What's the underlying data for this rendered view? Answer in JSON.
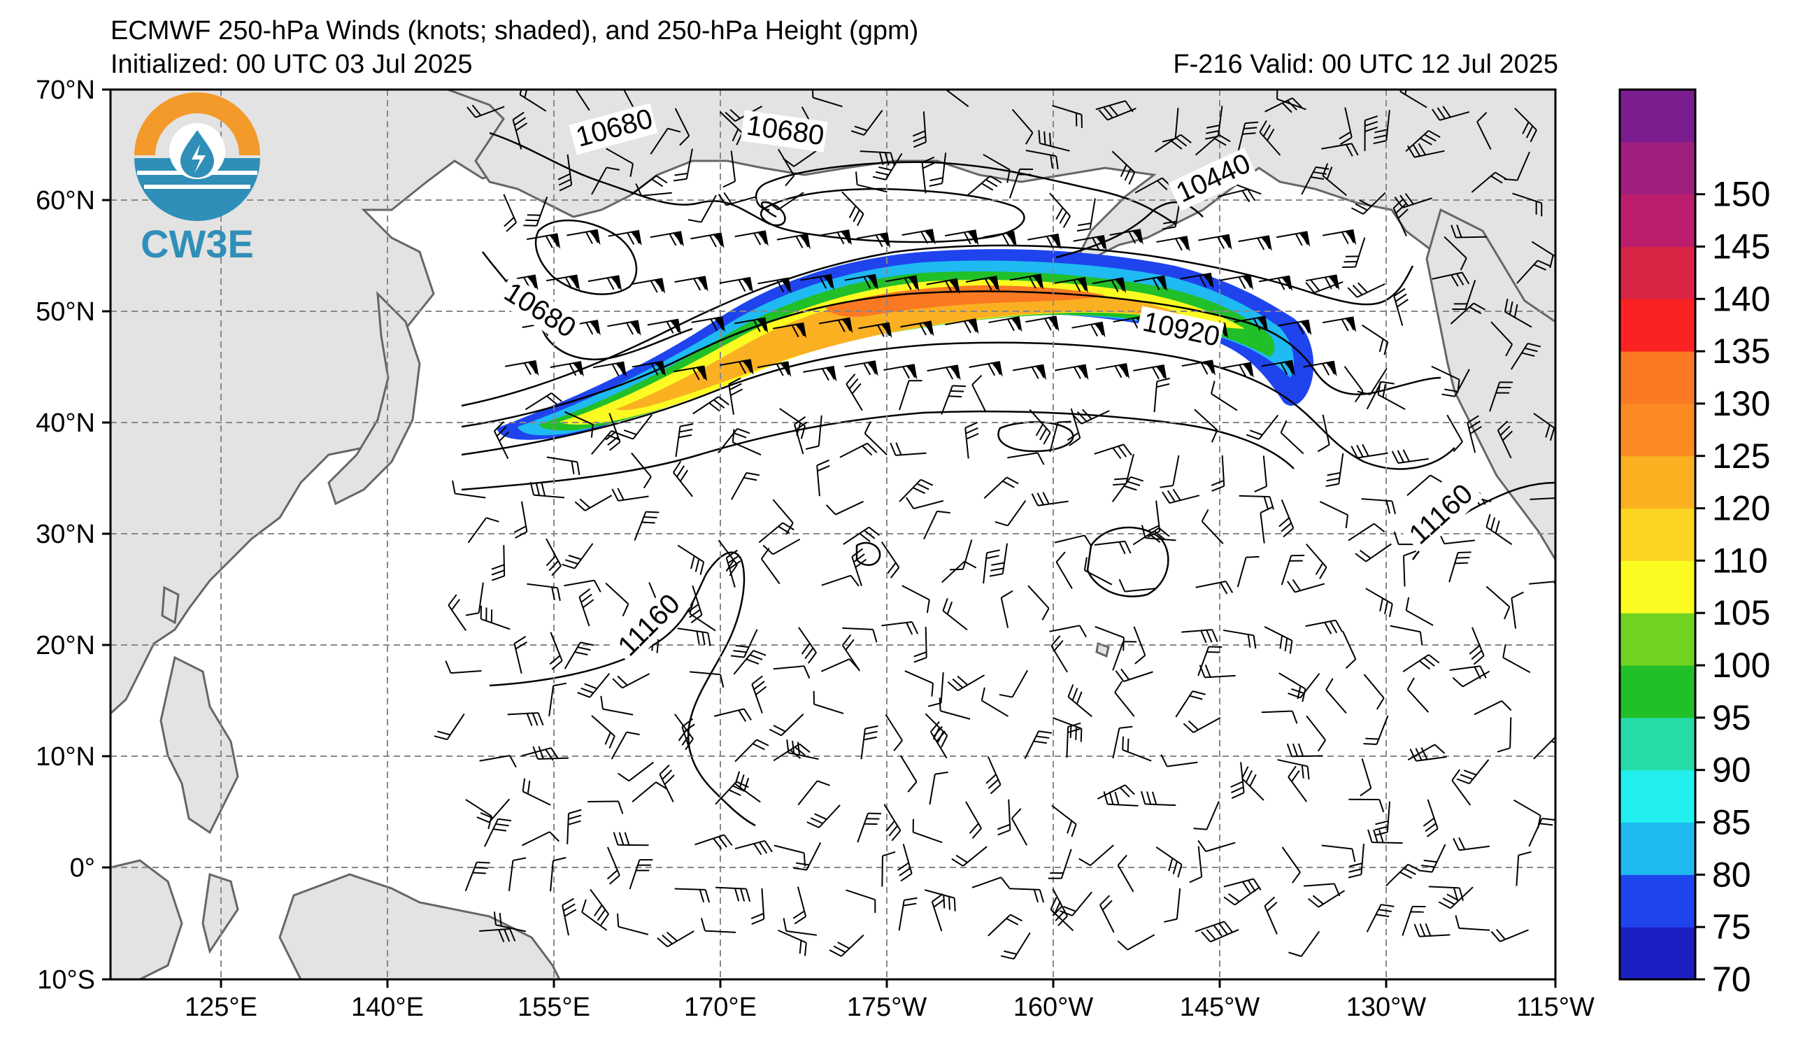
{
  "header": {
    "title": "ECMWF 250-hPa Winds (knots; shaded), and 250-hPa Height (gpm)",
    "initialized": "Initialized: 00 UTC 03 Jul 2025",
    "valid": "F-216  Valid: 00 UTC 12 Jul 2025"
  },
  "logo": {
    "text": "CW3E",
    "colors": {
      "sun": "#f39a2b",
      "water": "#2f8fb8"
    }
  },
  "map": {
    "lat_labels": [
      "70°N",
      "60°N",
      "50°N",
      "40°N",
      "30°N",
      "20°N",
      "10°N",
      "0°",
      "10°S"
    ],
    "lon_labels": [
      "125°E",
      "140°E",
      "155°E",
      "170°E",
      "175°W",
      "160°W",
      "145°W",
      "130°W",
      "115°W"
    ],
    "contour_labels": [
      "10680",
      "10680",
      "10440",
      "10680",
      "10920",
      "11160",
      "11160"
    ],
    "land_color": "#e3e3e3",
    "coast_color": "#666666",
    "grid_color": "#888888"
  },
  "colorbar": {
    "ticks": [
      "70",
      "75",
      "80",
      "85",
      "90",
      "95",
      "100",
      "105",
      "110",
      "120",
      "125",
      "130",
      "135",
      "140",
      "145",
      "150"
    ],
    "colors": [
      "#1c1fc2",
      "#1f44ee",
      "#1fbaf2",
      "#22f0ee",
      "#25dca8",
      "#21bf28",
      "#71d321",
      "#fbfb22",
      "#fbd522",
      "#fbb022",
      "#fb8a22",
      "#fb7922",
      "#fb2222",
      "#d92445",
      "#bc1e6d",
      "#a01f7e",
      "#7b1d8e"
    ]
  }
}
